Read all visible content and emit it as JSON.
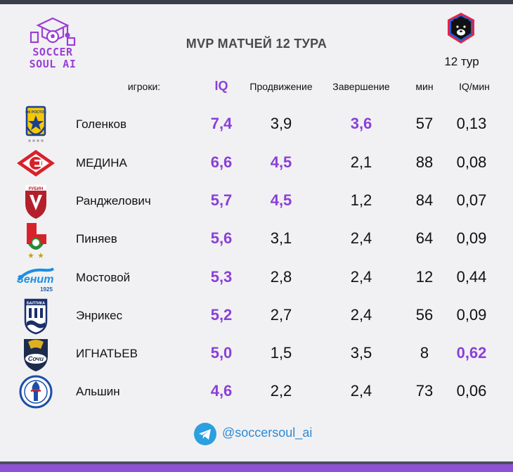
{
  "header": {
    "brand_line1": "SOCCER",
    "brand_line2": "SOUL AI",
    "title": "MVP МАТЧЕЙ 12 ТУРА",
    "round": "12 тур"
  },
  "columns": {
    "players": "игроки:",
    "iq": "IQ",
    "progression": "Продвижение",
    "finishing": "Завершение",
    "minutes": "мин",
    "iq_per_min": "IQ/мин"
  },
  "rows": [
    {
      "club_icon": "rostov-crest-icon",
      "name": "Голенков",
      "iq": "7,4",
      "progression": "3,9",
      "finishing": "3,6",
      "minutes": "57",
      "iq_per_min": "0,13",
      "hl_prog": false,
      "hl_fin": true,
      "hl_iqmin": false
    },
    {
      "club_icon": "spartak-crest-icon",
      "name": "МЕДИНА",
      "iq": "6,6",
      "progression": "4,5",
      "finishing": "2,1",
      "minutes": "88",
      "iq_per_min": "0,08",
      "hl_prog": true,
      "hl_fin": false,
      "hl_iqmin": false
    },
    {
      "club_icon": "rubin-crest-icon",
      "name": "Ранджелович",
      "iq": "5,7",
      "progression": "4,5",
      "finishing": "1,2",
      "minutes": "84",
      "iq_per_min": "0,07",
      "hl_prog": true,
      "hl_fin": false,
      "hl_iqmin": false
    },
    {
      "club_icon": "lokomotiv-crest-icon",
      "name": "Пиняев",
      "iq": "5,6",
      "progression": "3,1",
      "finishing": "2,4",
      "minutes": "64",
      "iq_per_min": "0,09",
      "hl_prog": false,
      "hl_fin": false,
      "hl_iqmin": false
    },
    {
      "club_icon": "zenit-crest-icon",
      "name": "Мостовой",
      "iq": "5,3",
      "progression": "2,8",
      "finishing": "2,4",
      "minutes": "12",
      "iq_per_min": "0,44",
      "hl_prog": false,
      "hl_fin": false,
      "hl_iqmin": false
    },
    {
      "club_icon": "baltika-crest-icon",
      "name": "Энрикес",
      "iq": "5,2",
      "progression": "2,7",
      "finishing": "2,4",
      "minutes": "56",
      "iq_per_min": "0,09",
      "hl_prog": false,
      "hl_fin": false,
      "hl_iqmin": false
    },
    {
      "club_icon": "sochi-crest-icon",
      "name": "ИГНАТЬЕВ",
      "iq": "5,0",
      "progression": "1,5",
      "finishing": "3,5",
      "minutes": "8",
      "iq_per_min": "0,62",
      "hl_prog": false,
      "hl_fin": false,
      "hl_iqmin": true
    },
    {
      "club_icon": "fakel-crest-icon",
      "name": "Альшин",
      "iq": "4,6",
      "progression": "2,2",
      "finishing": "2,4",
      "minutes": "73",
      "iq_per_min": "0,06",
      "hl_prog": false,
      "hl_fin": false,
      "hl_iqmin": false
    }
  ],
  "footer": {
    "telegram_handle": "@soccersoul_ai",
    "telegram_icon": "telegram-icon"
  },
  "colors": {
    "accent": "#8a3fd8",
    "background": "#f1f1f3",
    "telegram": "#2b9fe0"
  }
}
